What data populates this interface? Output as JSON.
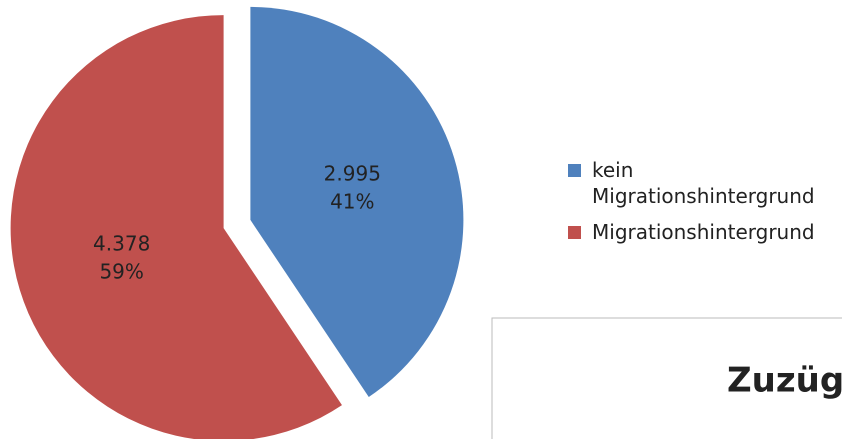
{
  "chart_data": {
    "type": "pie",
    "categories": [
      "kein Migrationshintergrund",
      "Migrationshintergrund"
    ],
    "values": [
      2995,
      4378
    ],
    "value_labels": [
      "2.995",
      "4.378"
    ],
    "percents": [
      41,
      59
    ],
    "percent_labels": [
      "41%",
      "59%"
    ],
    "colors": [
      "#4f81bd",
      "#c0504d"
    ],
    "legend": "right",
    "inset_title": "Zuzüg"
  }
}
